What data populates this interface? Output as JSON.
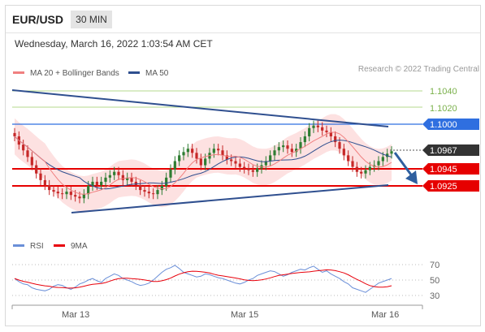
{
  "header": {
    "symbol": "EUR/USD",
    "timeframe": "30 MIN"
  },
  "datetime": "Wednesday, March 16, 2022 1:03:54 AM CET",
  "legend": {
    "ma20_label": "MA 20 + Bollinger Bands",
    "ma50_label": "MA 50",
    "rsi_label": "RSI",
    "ma9_label": "9MA"
  },
  "credit": "Research © 2022 Trading Central",
  "colors": {
    "ma20": "#f08080",
    "ma50": "#2f4f8f",
    "rsi": "#6a8fd8",
    "ma9": "#e8000b",
    "up": "#2e7d32",
    "down": "#c62828",
    "bands": "#fcd7d7",
    "current_price": "#333333",
    "trendline": "#2f4f8f",
    "resistance_green": "#b5d98e",
    "resistance_blue": "#2f6fe0",
    "support_red": "#e60000"
  },
  "price_levels": [
    {
      "value": "1.1040",
      "style": "green-line-label"
    },
    {
      "value": "1.1020",
      "style": "green-line-label"
    },
    {
      "value": "1.1000",
      "style": "blue-tag"
    },
    {
      "value": "1.0967",
      "style": "current-tag"
    },
    {
      "value": "1.0945",
      "style": "red-tag"
    },
    {
      "value": "1.0925",
      "style": "red-tag"
    }
  ],
  "rsi_levels": [
    "70",
    "50",
    "30"
  ],
  "x_axis": [
    "Mar 13",
    "Mar 15",
    "Mar 16"
  ],
  "forecast_arrow": {
    "direction": "down",
    "target": "1.0925"
  },
  "chart_data": {
    "type": "candlestick",
    "instrument": "EUR/USD",
    "interval": "30 MIN",
    "price_series": [
      1.0985,
      1.0975,
      1.0968,
      1.096,
      1.095,
      1.094,
      1.0932,
      1.0926,
      1.092,
      1.0918,
      1.0916,
      1.0915,
      1.0918,
      1.0914,
      1.0912,
      1.091,
      1.0915,
      1.0925,
      1.093,
      1.0926,
      1.093,
      1.0935,
      1.0938,
      1.0942,
      1.0938,
      1.0932,
      1.0935,
      1.093,
      1.0926,
      1.092,
      1.0918,
      1.0916,
      1.0915,
      1.092,
      1.0925,
      1.0935,
      1.0945,
      1.0955,
      1.0962,
      1.0966,
      1.097,
      1.0965,
      1.0958,
      1.095,
      1.0958,
      1.0965,
      1.097,
      1.0968,
      1.0962,
      1.0957,
      1.0955,
      1.0952,
      1.0948,
      1.0946,
      1.0944,
      1.0942,
      1.0946,
      1.095,
      1.0955,
      1.0962,
      1.0968,
      1.0972,
      1.0974,
      1.097,
      1.0966,
      1.097,
      1.0978,
      1.0985,
      1.0995,
      1.0998,
      1.0996,
      1.0992,
      1.099,
      1.0985,
      1.0978,
      1.097,
      1.0962,
      1.0955,
      1.0948,
      1.0942,
      1.094,
      1.0944,
      1.0948,
      1.095,
      1.0955,
      1.096,
      1.0964,
      1.0967
    ],
    "rsi_series": [
      52,
      48,
      45,
      44,
      40,
      38,
      37,
      36,
      38,
      42,
      44,
      43,
      40,
      38,
      41,
      45,
      47,
      50,
      52,
      49,
      47,
      52,
      55,
      58,
      56,
      52,
      50,
      48,
      45,
      43,
      44,
      46,
      50,
      55,
      60,
      64,
      66,
      69,
      65,
      60,
      58,
      56,
      54,
      55,
      58,
      57,
      55,
      53,
      52,
      50,
      48,
      46,
      45,
      47,
      50,
      52,
      56,
      58,
      60,
      62,
      61,
      58,
      55,
      57,
      60,
      62,
      64,
      63,
      66,
      68,
      64,
      60,
      62,
      58,
      55,
      52,
      48,
      45,
      40,
      38,
      36,
      34,
      38,
      42,
      46,
      48,
      50,
      52
    ],
    "levels": {
      "resistance": [
        1.104,
        1.102,
        1.1
      ],
      "current": 1.0967,
      "support": [
        1.0945,
        1.0925
      ]
    },
    "rsi_levels": [
      70,
      50,
      30
    ],
    "x_labels": [
      "Mar 13",
      "Mar 15",
      "Mar 16"
    ]
  }
}
